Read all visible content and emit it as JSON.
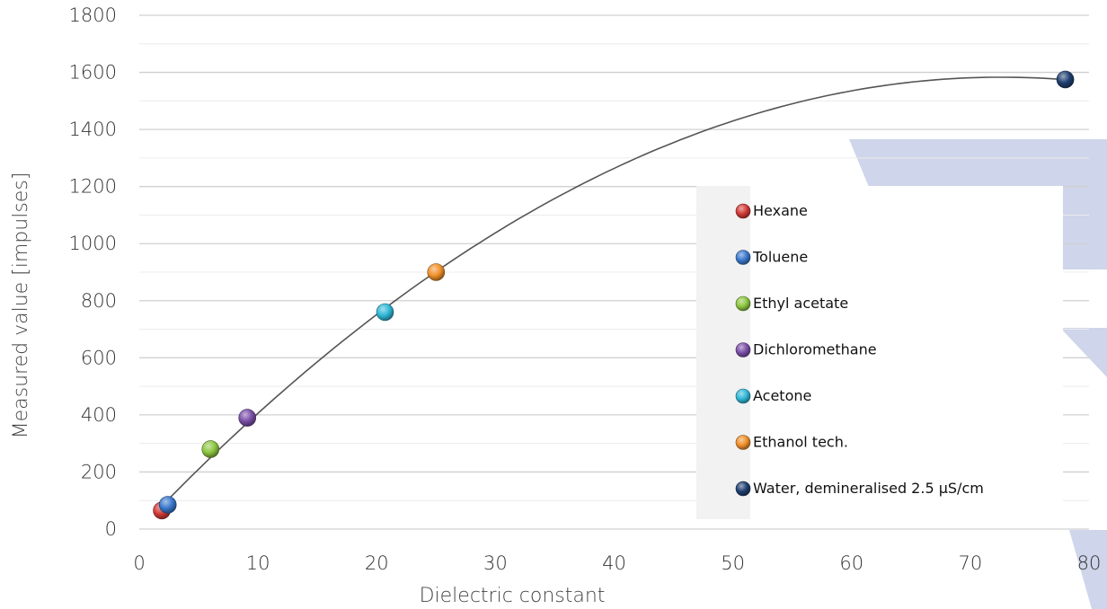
{
  "chart_data": {
    "type": "scatter",
    "title": "",
    "xlabel": "Dielectric constant",
    "ylabel": "Measured value [impulses]",
    "xlim": [
      0,
      80
    ],
    "ylim": [
      0,
      1800
    ],
    "xticks": [
      0,
      10,
      20,
      30,
      40,
      50,
      60,
      70,
      80
    ],
    "yticks": [
      0,
      200,
      400,
      600,
      800,
      1000,
      1200,
      1400,
      1600,
      1800
    ],
    "grid": true,
    "legend_position": "right",
    "trendline": "polynomial",
    "series": [
      {
        "name": "Hexane",
        "x": 1.9,
        "y": 65,
        "color": "#d23a36"
      },
      {
        "name": "Toluene",
        "x": 2.4,
        "y": 85,
        "color": "#3a78cc"
      },
      {
        "name": "Ethyl acetate",
        "x": 6.0,
        "y": 280,
        "color": "#8cc63f"
      },
      {
        "name": "Dichloromethane",
        "x": 9.1,
        "y": 390,
        "color": "#7b4fa8"
      },
      {
        "name": "Acetone",
        "x": 20.7,
        "y": 760,
        "color": "#2fb7d6"
      },
      {
        "name": "Ethanol tech.",
        "x": 25.0,
        "y": 900,
        "color": "#f0902a"
      },
      {
        "name": "Water, demineralised 2.5 µS/cm",
        "x": 78.0,
        "y": 1575,
        "color": "#1f3f70"
      }
    ]
  }
}
